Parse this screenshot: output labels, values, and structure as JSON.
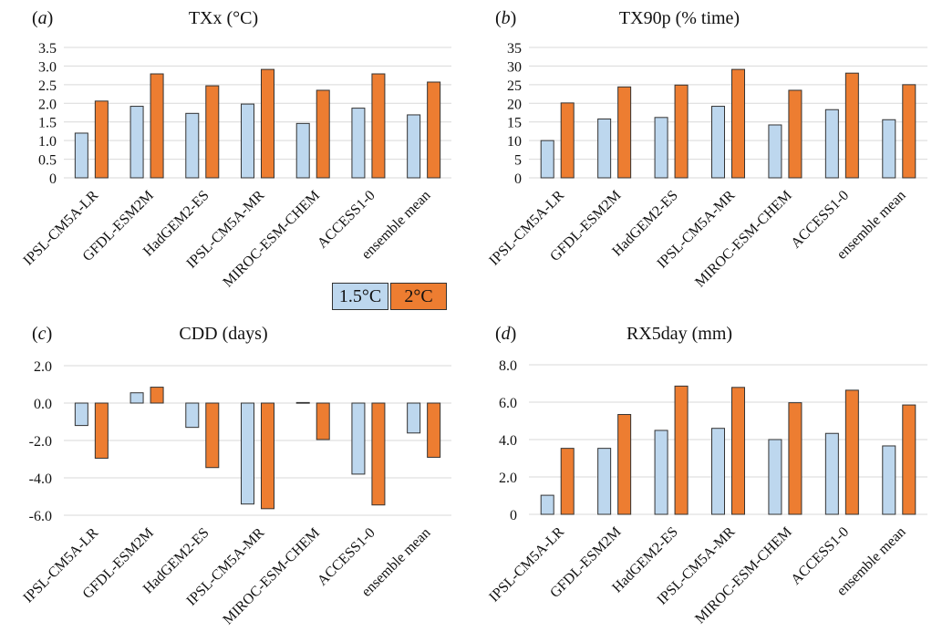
{
  "colors": {
    "s1": "#bdd7ee",
    "s2": "#ed7d31",
    "bar_edge": "#333333",
    "grid": "#d9d9d9"
  },
  "legend": {
    "s1": "1.5°C",
    "s2": "2°C"
  },
  "chart_data": [
    {
      "type": "bar",
      "panel_label": "a",
      "title": "TXx (°C)",
      "categories": [
        "IPSL-CM5A-LR",
        "GFDL-ESM2M",
        "HadGEM2-ES",
        "IPSL-CM5A-MR",
        "MIROC-ESM-CHEM",
        "ACCESS1-0",
        "ensemble mean"
      ],
      "series": [
        {
          "name": "1.5°C",
          "values": [
            1.2,
            1.92,
            1.73,
            1.98,
            1.46,
            1.87,
            1.69
          ]
        },
        {
          "name": "2°C",
          "values": [
            2.06,
            2.79,
            2.47,
            2.91,
            2.35,
            2.79,
            2.57
          ]
        }
      ],
      "ylim": [
        0,
        3.5
      ],
      "yticks": [
        0,
        0.5,
        1.0,
        1.5,
        2.0,
        2.5,
        3.0,
        3.5
      ],
      "ytick_labels": [
        "0",
        "0.5",
        "1.0",
        "1.5",
        "2.0",
        "2.5",
        "3.0",
        "3.5"
      ],
      "grid": true
    },
    {
      "type": "bar",
      "panel_label": "b",
      "title": "TX90p (% time)",
      "categories": [
        "IPSL-CM5A-LR",
        "GFDL-ESM2M",
        "HadGEM2-ES",
        "IPSL-CM5A-MR",
        "MIROC-ESM-CHEM",
        "ACCESS1-0",
        "ensemble mean"
      ],
      "series": [
        {
          "name": "1.5°C",
          "values": [
            10,
            15.8,
            16.2,
            19.2,
            14.2,
            18.3,
            15.6
          ]
        },
        {
          "name": "2°C",
          "values": [
            20.1,
            24.4,
            24.9,
            29.1,
            23.5,
            28.1,
            25.0
          ]
        }
      ],
      "ylim": [
        0,
        35
      ],
      "yticks": [
        0,
        5,
        10,
        15,
        20,
        25,
        30,
        35
      ],
      "ytick_labels": [
        "0",
        "5",
        "10",
        "15",
        "20",
        "25",
        "30",
        "35"
      ],
      "grid": true
    },
    {
      "type": "bar",
      "panel_label": "c",
      "title": "CDD (days)",
      "categories": [
        "IPSL-CM5A-LR",
        "GFDL-ESM2M",
        "HadGEM2-ES",
        "IPSL-CM5A-MR",
        "MIROC-ESM-CHEM",
        "ACCESS1-0",
        "ensemble mean"
      ],
      "series": [
        {
          "name": "1.5°C",
          "values": [
            -1.2,
            0.55,
            -1.3,
            -5.4,
            0.03,
            -3.8,
            -1.6
          ]
        },
        {
          "name": "2°C",
          "values": [
            -2.95,
            0.85,
            -3.45,
            -5.65,
            -1.95,
            -5.45,
            -2.9
          ]
        }
      ],
      "ylim": [
        -6,
        2
      ],
      "yticks": [
        2,
        0,
        -2,
        -4,
        -6
      ],
      "ytick_labels": [
        "2.0",
        "0.0",
        "-2.0",
        "-4.0",
        "-6.0"
      ],
      "grid": true
    },
    {
      "type": "bar",
      "panel_label": "d",
      "title": "RX5day (mm)",
      "categories": [
        "IPSL-CM5A-LR",
        "GFDL-ESM2M",
        "HadGEM2-ES",
        "IPSL-CM5A-MR",
        "MIROC-ESM-CHEM",
        "ACCESS1-0",
        "ensemble mean"
      ],
      "series": [
        {
          "name": "1.5°C",
          "values": [
            1.02,
            3.53,
            4.49,
            4.6,
            4.0,
            4.33,
            3.66
          ]
        },
        {
          "name": "2°C",
          "values": [
            3.53,
            5.34,
            6.86,
            6.79,
            5.97,
            6.64,
            5.85
          ]
        }
      ],
      "ylim": [
        0,
        8
      ],
      "yticks": [
        0,
        2,
        4,
        6,
        8
      ],
      "ytick_labels": [
        "0",
        "2.0",
        "4.0",
        "6.0",
        "8.0"
      ],
      "grid": true
    }
  ]
}
